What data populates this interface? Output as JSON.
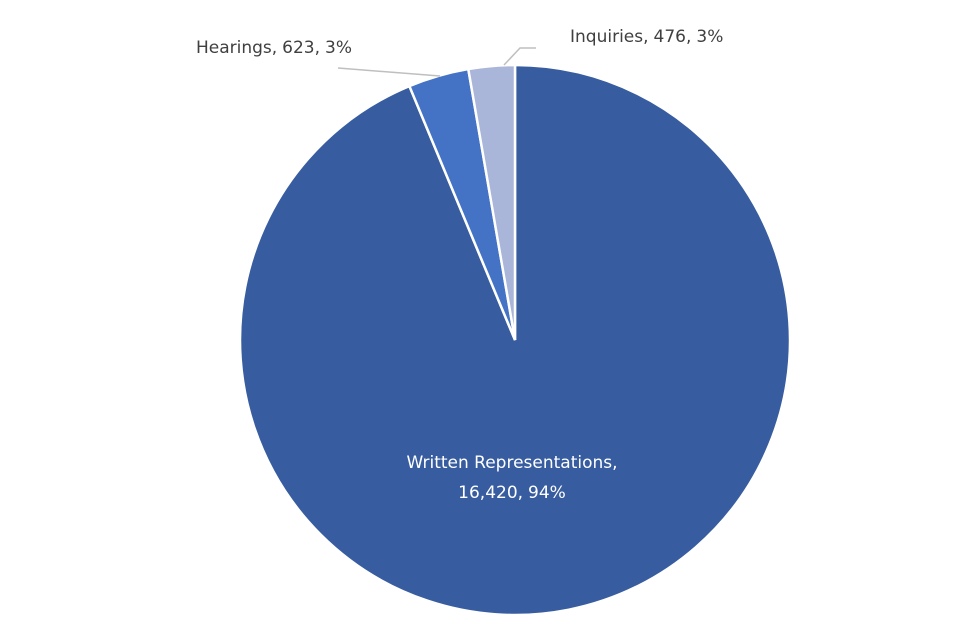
{
  "chart_data": {
    "type": "pie",
    "categories": [
      "Written Representations",
      "Hearings",
      "Inquiries"
    ],
    "values": [
      16420,
      623,
      476
    ],
    "value_labels": [
      "16,420",
      "623",
      "476"
    ],
    "percents": [
      94,
      3,
      3
    ],
    "percent_labels": [
      "94%",
      "3%",
      "3%"
    ],
    "colors": [
      "#375c9f",
      "#4472c4",
      "#a9b5d9"
    ]
  }
}
